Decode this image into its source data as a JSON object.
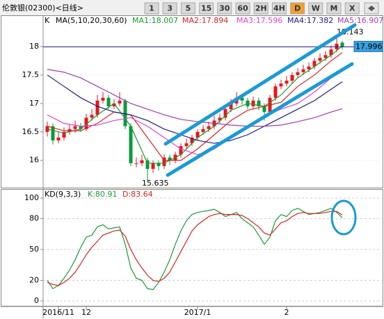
{
  "toolbar": {
    "title": "伦敦银(02300)<日线>",
    "buttons": [
      "1",
      "3",
      "5",
      "15",
      "30",
      "60",
      "2H",
      "4H",
      "D",
      "W",
      "M",
      "X"
    ],
    "active": "D"
  },
  "chart_data": [
    {
      "type": "candlestick",
      "label": "K",
      "indicator": "MA(5,10,20,30,60)",
      "open": [
        16.5,
        16.6,
        16.35,
        16.4,
        16.5,
        16.55,
        16.6,
        16.55,
        16.75,
        16.8,
        17.05,
        17.1,
        16.95,
        17.0,
        17.05,
        16.6,
        15.95,
        15.95,
        16.0,
        15.85,
        15.95,
        15.9,
        16.05,
        16.0,
        16.1,
        16.25,
        16.3,
        16.4,
        16.5,
        16.55,
        16.6,
        16.7,
        16.75,
        16.9,
        17.0,
        17.1,
        17.05,
        16.95,
        17.05,
        16.95,
        16.85,
        17.1,
        17.3,
        17.35,
        17.4,
        17.5,
        17.55,
        17.6,
        17.65,
        17.75,
        17.8,
        17.85,
        17.95,
        18.07
      ],
      "high": [
        16.68,
        16.65,
        16.5,
        16.58,
        16.62,
        16.7,
        16.66,
        16.82,
        16.9,
        17.15,
        17.2,
        17.15,
        17.08,
        17.2,
        17.08,
        16.65,
        16.05,
        16.1,
        16.05,
        16.0,
        16.0,
        16.1,
        16.1,
        16.15,
        16.3,
        16.38,
        16.45,
        16.55,
        16.62,
        16.68,
        16.78,
        16.82,
        16.95,
        17.08,
        17.2,
        17.15,
        17.1,
        17.12,
        17.1,
        17.0,
        17.15,
        17.35,
        17.42,
        17.48,
        17.55,
        17.62,
        17.68,
        17.72,
        17.8,
        17.88,
        17.92,
        18.02,
        18.143,
        18.1
      ],
      "low": [
        16.42,
        16.28,
        16.3,
        16.35,
        16.45,
        16.48,
        16.5,
        16.52,
        16.7,
        16.75,
        17.0,
        16.9,
        16.9,
        16.95,
        16.55,
        15.9,
        15.88,
        15.9,
        15.635,
        15.78,
        15.82,
        15.85,
        15.92,
        15.95,
        16.05,
        16.2,
        16.25,
        16.35,
        16.45,
        16.5,
        16.55,
        16.65,
        16.7,
        16.85,
        16.95,
        16.98,
        16.9,
        16.9,
        16.88,
        16.7,
        16.8,
        17.05,
        17.25,
        17.3,
        17.35,
        17.45,
        17.5,
        17.55,
        17.6,
        17.7,
        17.75,
        17.8,
        17.9,
        17.95
      ],
      "close": [
        16.6,
        16.35,
        16.4,
        16.5,
        16.55,
        16.6,
        16.55,
        16.75,
        16.8,
        17.05,
        17.1,
        16.95,
        17.0,
        17.05,
        16.6,
        15.95,
        15.95,
        16.0,
        15.85,
        15.95,
        15.9,
        16.05,
        16.0,
        16.1,
        16.25,
        16.3,
        16.4,
        16.5,
        16.55,
        16.6,
        16.7,
        16.75,
        16.9,
        17.0,
        17.1,
        17.05,
        16.95,
        17.05,
        16.95,
        16.85,
        17.1,
        17.3,
        17.35,
        17.4,
        17.5,
        17.55,
        17.6,
        17.65,
        17.75,
        17.8,
        17.85,
        17.95,
        18.05,
        17.996
      ],
      "up_color": "#e8151b",
      "down_color": "#0a9a3c",
      "ylim": [
        15.52,
        18.55
      ],
      "yticks": [
        16,
        16.5,
        17,
        17.5,
        18
      ],
      "grid": true,
      "ma_x": [
        0,
        3,
        6,
        9,
        12,
        15,
        18,
        21,
        24,
        27,
        30,
        33,
        36,
        39,
        42,
        45,
        48,
        51,
        53
      ],
      "ma_series": [
        {
          "name": "MA1:18.007",
          "color": "#1a9a2a",
          "values": [
            16.55,
            16.48,
            16.55,
            16.8,
            17.0,
            16.6,
            15.95,
            15.95,
            16.1,
            16.4,
            16.6,
            16.88,
            17.0,
            16.95,
            17.15,
            17.45,
            17.65,
            17.85,
            18.007
          ]
        },
        {
          "name": "MA2:17.894",
          "color": "#e02020",
          "values": [
            16.6,
            16.52,
            16.52,
            16.65,
            16.85,
            16.8,
            16.4,
            16.0,
            16.0,
            16.2,
            16.45,
            16.7,
            16.88,
            16.95,
            17.02,
            17.3,
            17.5,
            17.75,
            17.894
          ]
        },
        {
          "name": "MA3:17.596",
          "color": "#e040d8",
          "values": [
            16.8,
            16.65,
            16.6,
            16.62,
            16.7,
            16.75,
            16.6,
            16.4,
            16.2,
            16.1,
            16.2,
            16.4,
            16.6,
            16.78,
            16.9,
            17.0,
            17.2,
            17.45,
            17.596
          ]
        },
        {
          "name": "MA4:17.382",
          "color": "#1c1c8c",
          "values": [
            17.5,
            17.3,
            17.1,
            16.95,
            16.85,
            16.8,
            16.7,
            16.55,
            16.45,
            16.35,
            16.3,
            16.35,
            16.45,
            16.6,
            16.75,
            16.9,
            17.05,
            17.25,
            17.382
          ]
        },
        {
          "name": "MA5:16.907",
          "color": "#a03cb0",
          "values": [
            17.6,
            17.55,
            17.45,
            17.3,
            17.15,
            17.0,
            16.9,
            16.8,
            16.72,
            16.68,
            16.65,
            16.62,
            16.6,
            16.6,
            16.62,
            16.68,
            16.75,
            16.85,
            16.907
          ]
        }
      ]
    },
    {
      "type": "line",
      "label": "KD(9,3,3)",
      "categories": [
        null,
        null,
        "2016/11",
        null,
        null,
        null,
        null,
        "12",
        null,
        null,
        null,
        null,
        null,
        null,
        null,
        null,
        null,
        null,
        null,
        null,
        null,
        null,
        null,
        null,
        null,
        null,
        null,
        "2017/1",
        null,
        null,
        null,
        null,
        null,
        null,
        null,
        null,
        null,
        null,
        null,
        null,
        null,
        null,
        null,
        "2",
        null,
        null,
        null,
        null,
        null,
        null,
        null,
        null,
        null,
        null
      ],
      "series": [
        {
          "name": "K:80.91",
          "color": "#1a9a3a",
          "values": [
            20,
            12,
            15,
            22,
            30,
            40,
            52,
            62,
            64,
            72,
            74,
            70,
            71,
            72,
            55,
            32,
            22,
            20,
            12,
            11,
            18,
            28,
            40,
            55,
            68,
            78,
            84,
            86,
            87,
            88,
            89,
            86,
            82,
            84,
            86,
            80,
            76,
            72,
            64,
            55,
            62,
            78,
            84,
            82,
            88,
            90,
            87,
            84,
            85,
            86,
            88,
            90,
            86,
            80.91
          ]
        },
        {
          "name": "D:83.64",
          "color": "#e02020",
          "values": [
            18,
            16,
            15,
            18,
            22,
            28,
            36,
            45,
            52,
            58,
            64,
            66,
            68,
            69,
            63,
            50,
            40,
            32,
            25,
            20,
            19,
            22,
            28,
            38,
            48,
            58,
            68,
            74,
            78,
            82,
            84,
            85,
            84,
            84,
            84,
            83,
            80,
            76,
            72,
            66,
            64,
            70,
            76,
            78,
            82,
            85,
            86,
            85,
            85,
            85,
            86,
            87,
            87,
            83.64
          ]
        }
      ],
      "ylim": [
        -4.7,
        107.4
      ],
      "yticks": [
        0,
        20,
        50,
        80,
        100
      ],
      "grid": true
    }
  ]
}
